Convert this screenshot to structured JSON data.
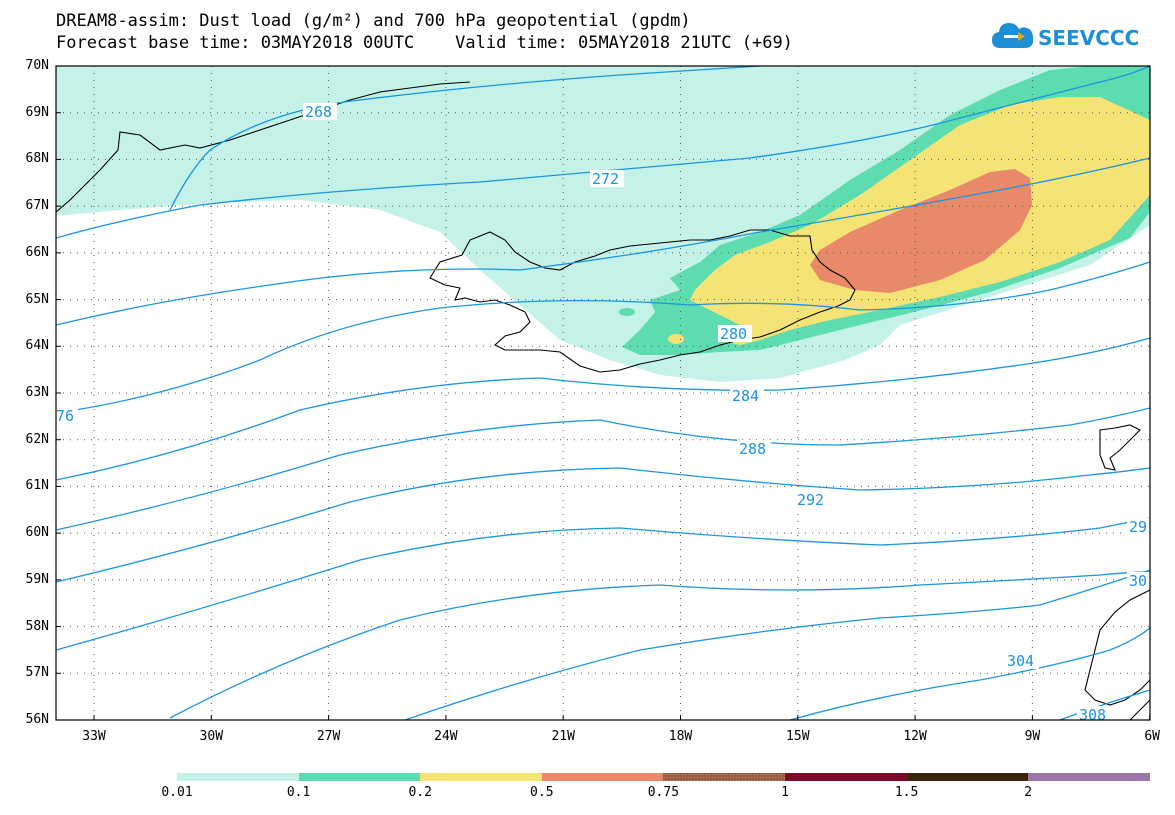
{
  "title_line1": "DREAM8-assim: Dust load (g/m²) and 700 hPa geopotential (gpdm)",
  "title_line2": "Forecast base time: 03MAY2018 00UTC    Valid time: 05MAY2018 21UTC (+69)",
  "logo": {
    "text": "SEEVCCC",
    "icon": "cloud-logo-icon",
    "color": "#1e8fd6"
  },
  "axes": {
    "lat_labels": [
      "70N",
      "69N",
      "68N",
      "67N",
      "66N",
      "65N",
      "64N",
      "63N",
      "62N",
      "61N",
      "60N",
      "59N",
      "58N",
      "57N",
      "56N"
    ],
    "lon_labels": [
      "33W",
      "30W",
      "27W",
      "24W",
      "21W",
      "18W",
      "15W",
      "12W",
      "9W",
      "6W"
    ]
  },
  "contour_labels": [
    "268",
    "272",
    "280",
    "284",
    "288",
    "292",
    "304",
    "308",
    "76",
    "29",
    "30"
  ],
  "colorbar": {
    "labels": [
      "0.01",
      "0.1",
      "0.2",
      "0.5",
      "0.75",
      "1",
      "1.5",
      "2"
    ],
    "colors": [
      "#c5f2e8",
      "#5ddcb0",
      "#f5e475",
      "#e8896a",
      "#9c5c40",
      "#7a0a2a",
      "#3b2510",
      "#9a77a6"
    ]
  },
  "colors": {
    "contour": "#1a95e0",
    "coast": "#000000"
  }
}
